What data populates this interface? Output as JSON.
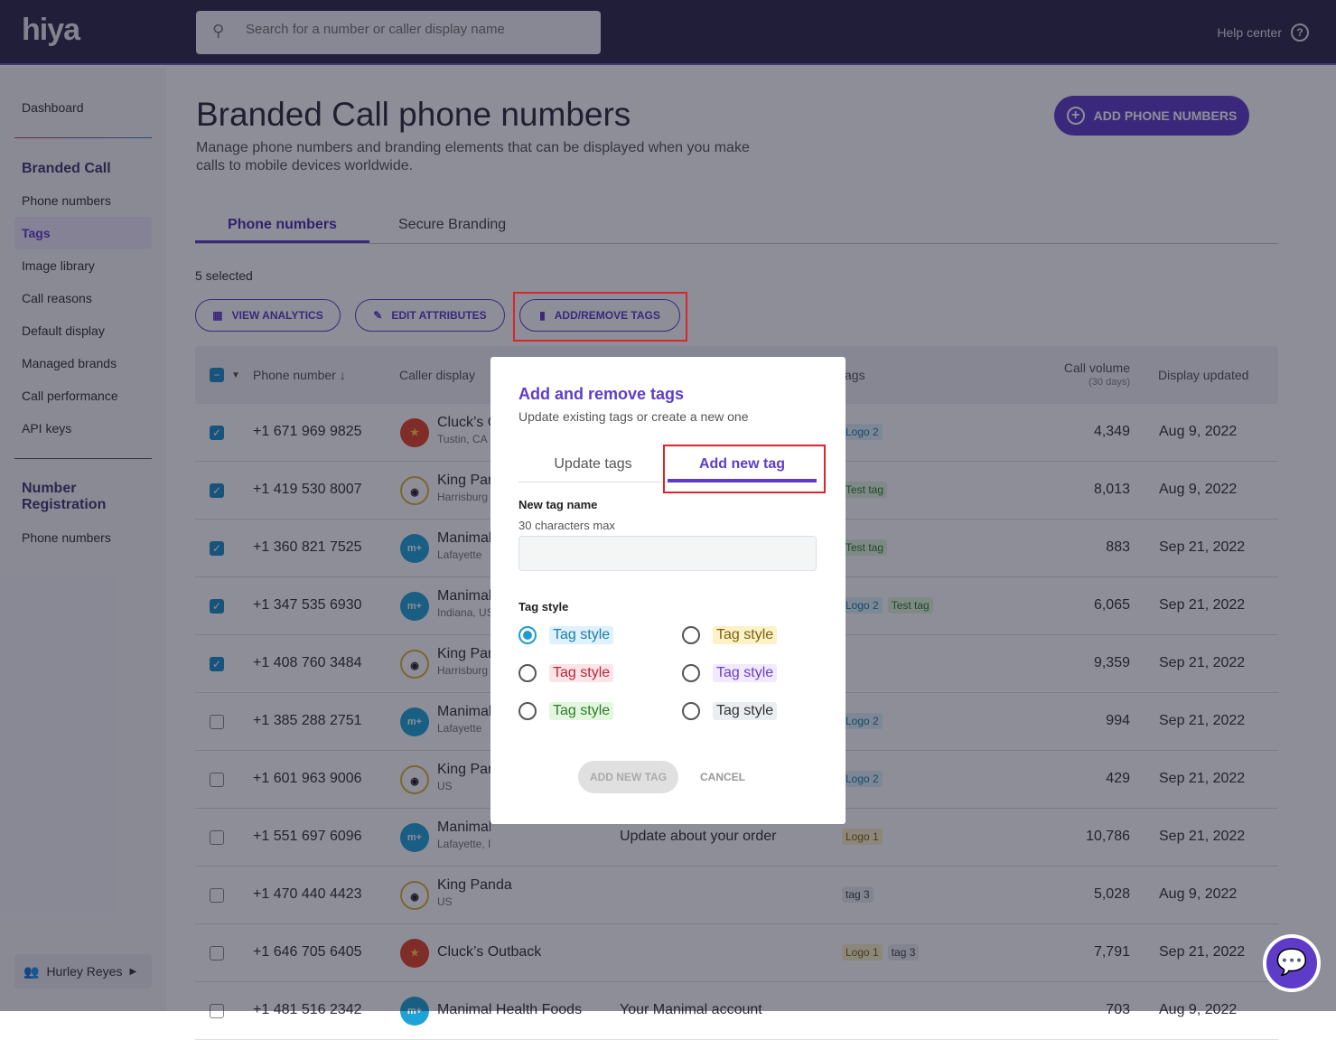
{
  "header": {
    "logo": "hiya",
    "search_placeholder": "Search for a number or caller display name",
    "help": "Help center"
  },
  "sidebar": {
    "dashboard": "Dashboard",
    "branded_call": "Branded Call",
    "items": [
      "Phone numbers",
      "Tags",
      "Image library",
      "Call reasons",
      "Default display",
      "Managed brands",
      "Call performance",
      "API keys"
    ],
    "number_registration": "Number Registration",
    "nr_items": [
      "Phone numbers"
    ],
    "user": "Hurley Reyes"
  },
  "main": {
    "title": "Branded Call phone numbers",
    "subtitle": "Manage phone numbers and branding elements that can be displayed when you make calls to mobile devices worldwide.",
    "add_button": "ADD PHONE NUMBERS",
    "tabs": [
      "Phone numbers",
      "Secure Branding"
    ],
    "selected": "5 selected",
    "actions": [
      "VIEW ANALYTICS",
      "EDIT ATTRIBUTES",
      "ADD/REMOVE TAGS"
    ]
  },
  "table": {
    "headers": {
      "phone": "Phone number",
      "caller": "Caller display",
      "tags": "Tags",
      "volume": "Call volume",
      "volume_sub": "(30 days)",
      "updated": "Display updated"
    },
    "rows": [
      {
        "checked": true,
        "phone": "+1 671 969 9825",
        "brand": "cl",
        "name": "Cluck’s Outback",
        "loc": "Tustin, CA",
        "msg": "",
        "tags": [
          [
            "Logo 2",
            "blue"
          ]
        ],
        "vol": "4,349",
        "date": "Aug 9, 2022"
      },
      {
        "checked": true,
        "phone": "+1 419 530 8007",
        "brand": "kp",
        "name": "King Panda",
        "loc": "Harrisburg",
        "msg": "",
        "tags": [
          [
            "Test tag",
            "green"
          ]
        ],
        "vol": "8,013",
        "date": "Aug 9, 2022"
      },
      {
        "checked": true,
        "phone": "+1 360 821 7525",
        "brand": "mh",
        "name": "Manimal Health Foods",
        "loc": "Lafayette",
        "msg": "",
        "tags": [
          [
            "Test tag",
            "green"
          ]
        ],
        "vol": "883",
        "date": "Sep 21, 2022"
      },
      {
        "checked": true,
        "phone": "+1 347 535 6930",
        "brand": "mh",
        "name": "Manimal Health Foods",
        "loc": "Indiana, US",
        "msg": "",
        "tags": [
          [
            "Logo 2",
            "blue"
          ],
          [
            "Test tag",
            "green"
          ]
        ],
        "vol": "6,065",
        "date": "Sep 21, 2022"
      },
      {
        "checked": true,
        "phone": "+1 408 760 3484",
        "brand": "kp",
        "name": "King Panda",
        "loc": "Harrisburg",
        "msg": "",
        "tags": [],
        "vol": "9,359",
        "date": "Sep 21, 2022"
      },
      {
        "checked": false,
        "phone": "+1 385 288 2751",
        "brand": "mh",
        "name": "Manimal Health Foods",
        "loc": "Lafayette",
        "msg": "",
        "tags": [
          [
            "Logo 2",
            "blue"
          ]
        ],
        "vol": "994",
        "date": "Sep 21, 2022"
      },
      {
        "checked": false,
        "phone": "+1 601 963 9006",
        "brand": "kp",
        "name": "King Panda",
        "loc": "US",
        "msg": "",
        "tags": [
          [
            "Logo 2",
            "blue"
          ]
        ],
        "vol": "429",
        "date": "Sep 21, 2022"
      },
      {
        "checked": false,
        "phone": "+1 551 697 6096",
        "brand": "mh",
        "name": "Manimal Health Foods",
        "loc": "Lafayette, Indiana, US",
        "msg": "Update about your order",
        "tags": [
          [
            "Logo 1",
            "yellow"
          ]
        ],
        "vol": "10,786",
        "date": "Sep 21, 2022"
      },
      {
        "checked": false,
        "phone": "+1 470 440 4423",
        "brand": "kp",
        "name": "King Panda",
        "loc": "US",
        "msg": "",
        "tags": [
          [
            "tag 3",
            "grey"
          ]
        ],
        "vol": "5,028",
        "date": "Aug 9, 2022"
      },
      {
        "checked": false,
        "phone": "+1 646 705 6405",
        "brand": "cl",
        "name": "Cluck’s Outback",
        "loc": "",
        "msg": "",
        "tags": [
          [
            "Logo 1",
            "yellow"
          ],
          [
            "tag 3",
            "grey"
          ]
        ],
        "vol": "7,791",
        "date": "Sep 21, 2022"
      },
      {
        "checked": false,
        "phone": "+1 481 516 2342",
        "brand": "mh",
        "name": "Manimal Health Foods",
        "loc": "",
        "msg": "Your Manimal account",
        "tags": [],
        "vol": "703",
        "date": "Aug 9, 2022"
      }
    ]
  },
  "modal": {
    "title": "Add and remove tags",
    "subtitle": "Update existing tags or create a new one",
    "tabs": [
      "Update tags",
      "Add new tag"
    ],
    "name_label": "New tag name",
    "name_hint": "30 characters max",
    "name_value": "",
    "style_label": "Tag style",
    "style_option": "Tag style",
    "selected_style": "blue",
    "add_button": "ADD NEW TAG",
    "cancel_button": "CANCEL"
  },
  "colors": {
    "accent": "#5e3cc9",
    "header": "#2c2a48",
    "tag_blue": "#dff1fa",
    "tag_yellow": "#fcf1c7",
    "tag_red": "#fde4e6",
    "tag_purple": "#f1e9fd",
    "tag_green": "#e3f7df",
    "tag_grey": "#e9eef0",
    "highlight": "#d9262b"
  }
}
